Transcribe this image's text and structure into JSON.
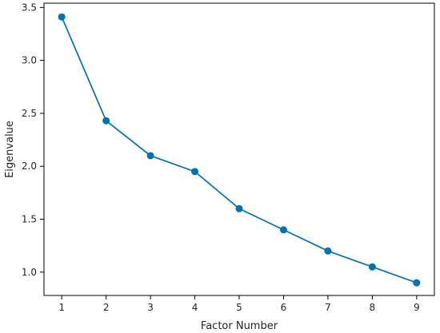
{
  "chart_data": {
    "type": "line",
    "title": "",
    "xlabel": "Factor Number",
    "ylabel": "Eigenvalue",
    "x": [
      1,
      2,
      3,
      4,
      5,
      6,
      7,
      8,
      9
    ],
    "series": [
      {
        "values": [
          3.41,
          2.43,
          2.1,
          1.95,
          1.6,
          1.4,
          1.2,
          1.05,
          0.9
        ],
        "color": "#0072b2"
      }
    ],
    "xlim": [
      0.6,
      9.4
    ],
    "ylim": [
      0.78,
      3.54
    ],
    "xticks": [
      "1",
      "2",
      "3",
      "4",
      "5",
      "6",
      "7",
      "8",
      "9"
    ],
    "yticks": [
      "1.0",
      "1.5",
      "2.0",
      "2.5",
      "3.0",
      "3.5"
    ],
    "grid": false,
    "legend": "none",
    "marker": "circle"
  }
}
